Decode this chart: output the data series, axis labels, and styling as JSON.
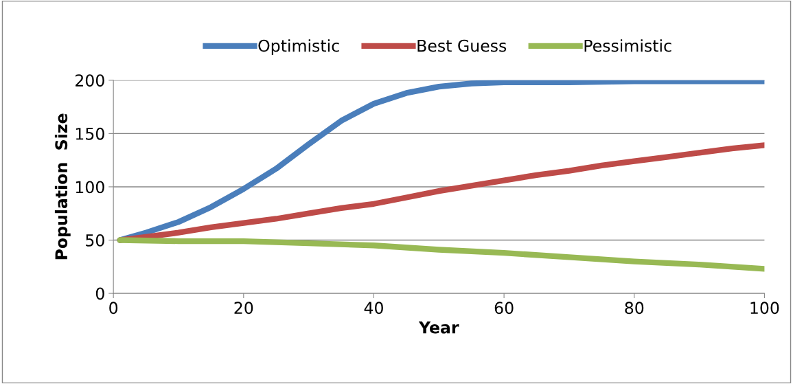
{
  "chart_data": {
    "type": "line",
    "xlabel": "Year",
    "ylabel": "Population  Size",
    "xlim": [
      0,
      100
    ],
    "ylim": [
      0,
      200
    ],
    "xticks": [
      0,
      20,
      40,
      60,
      80,
      100
    ],
    "yticks": [
      0,
      50,
      100,
      150,
      200
    ],
    "grid": "y",
    "legend": "top",
    "marker": "none",
    "line_style": "solid",
    "series": [
      {
        "name": "Optimistic",
        "color": "#4a7ebb",
        "x": [
          1,
          5,
          10,
          15,
          20,
          25,
          30,
          35,
          40,
          45,
          50,
          55,
          60,
          70,
          80,
          90,
          100
        ],
        "values": [
          50,
          57,
          67,
          81,
          98,
          117,
          140,
          162,
          178,
          188,
          194,
          197,
          198,
          198,
          199,
          199,
          199
        ]
      },
      {
        "name": "Best Guess",
        "color": "#be4b48",
        "x": [
          1,
          5,
          10,
          15,
          20,
          25,
          30,
          35,
          40,
          45,
          50,
          55,
          60,
          65,
          70,
          75,
          80,
          85,
          90,
          95,
          100
        ],
        "values": [
          50,
          53,
          57,
          62,
          66,
          70,
          75,
          80,
          84,
          90,
          96,
          101,
          106,
          111,
          115,
          120,
          124,
          128,
          132,
          136,
          139
        ]
      },
      {
        "name": "Pessimistic",
        "color": "#98b954",
        "x": [
          1,
          10,
          20,
          30,
          40,
          50,
          60,
          70,
          80,
          90,
          100
        ],
        "values": [
          50,
          49,
          49,
          47,
          45,
          41,
          38,
          34,
          30,
          27,
          23
        ]
      }
    ]
  }
}
